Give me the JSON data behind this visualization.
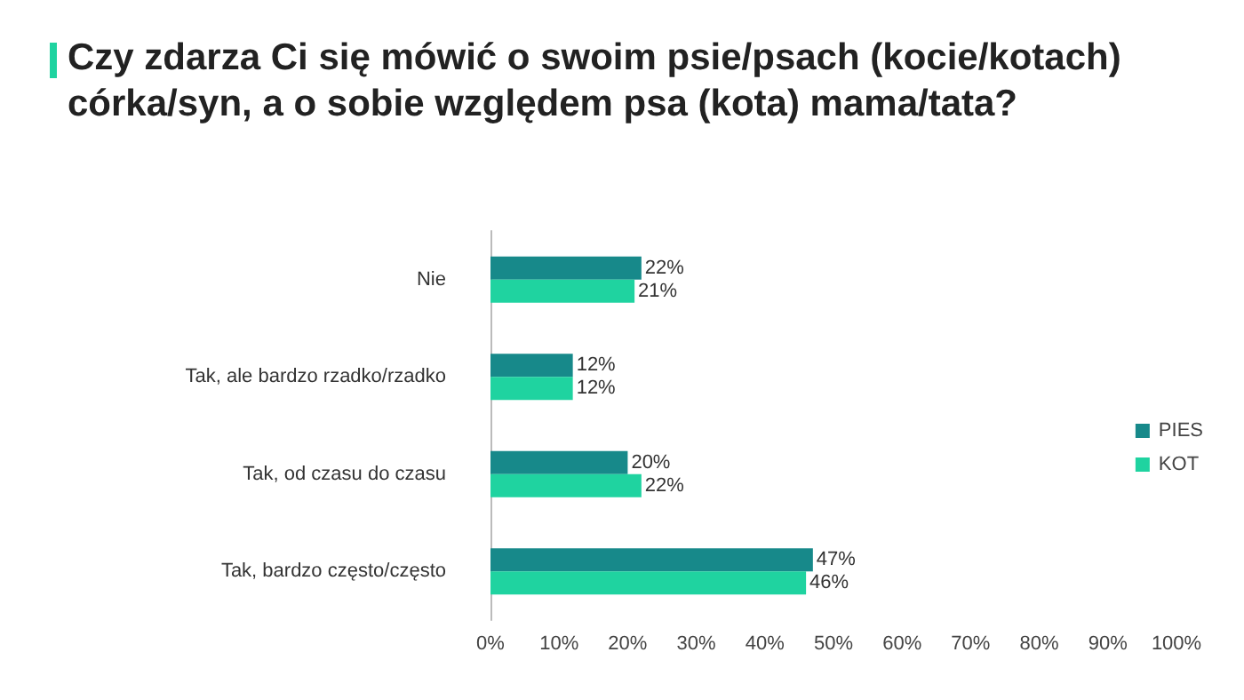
{
  "chart_data": {
    "type": "bar",
    "orientation": "horizontal",
    "title": "Czy zdarza Ci się mówić o swoim psie/psach (kocie/kotach) córka/syn, a o sobie względem psa (kota) mama/tata?",
    "categories": [
      "Nie",
      "Tak, ale bardzo rzadko/rzadko",
      "Tak, od czasu do czasu",
      "Tak, bardzo często/często"
    ],
    "series": [
      {
        "name": "PIES",
        "color": "#17898a",
        "values": [
          22,
          12,
          20,
          47
        ],
        "value_labels": [
          "22%",
          "12%",
          "20%",
          "47%"
        ]
      },
      {
        "name": "KOT",
        "color": "#1fd3a0",
        "values": [
          21,
          12,
          22,
          46
        ],
        "value_labels": [
          "21%",
          "12%",
          "22%",
          "46%"
        ]
      }
    ],
    "xlim": [
      0,
      100
    ],
    "xticks": [
      {
        "value": 0,
        "label": "0%"
      },
      {
        "value": 10,
        "label": "10%"
      },
      {
        "value": 20,
        "label": "20%"
      },
      {
        "value": 30,
        "label": "30%"
      },
      {
        "value": 40,
        "label": "40%"
      },
      {
        "value": 50,
        "label": "50%"
      },
      {
        "value": 60,
        "label": "60%"
      },
      {
        "value": 70,
        "label": "70%"
      },
      {
        "value": 80,
        "label": "80%"
      },
      {
        "value": 90,
        "label": "90%"
      },
      {
        "value": 100,
        "label": "100%"
      }
    ],
    "legend": "right",
    "grid": false
  }
}
